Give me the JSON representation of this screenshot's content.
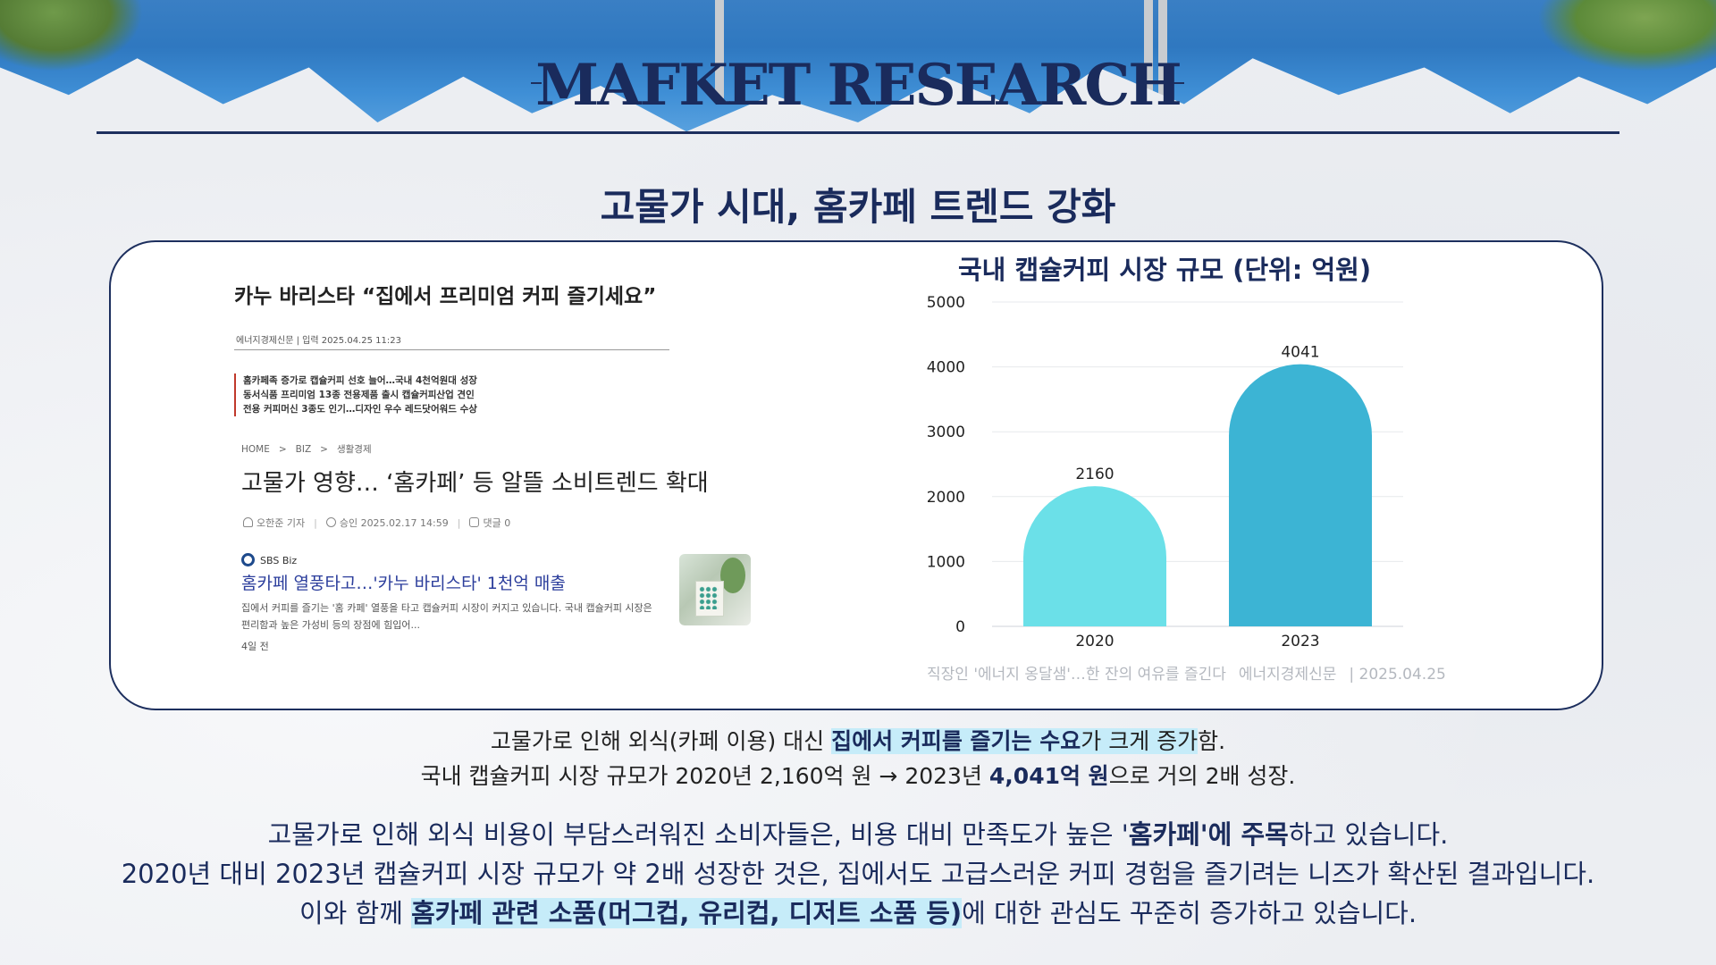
{
  "header": {
    "title": "MAFKET RESEARCH",
    "subtitle": "고물가 시대, 홈카페 트렌드 강화"
  },
  "news1": {
    "headline": "카누 바리스타 “집에서 프리미엄 커피 즐기세요”",
    "meta": "에너지경제신문 | 입력 2025.04.25 11:23",
    "bullets": [
      "홈카페족 증가로 캡슐커피 선호 늘어…국내 4천억원대 성장",
      "동서식품 프리미엄 13종 전용제품 출시 캡슐커피산업 견인",
      "전용 커피머신 3종도 인기…디자인 우수 레드닷어워드 수상"
    ]
  },
  "news2": {
    "breadcrumb": [
      "HOME",
      ">",
      "BIZ",
      ">",
      "생활경제"
    ],
    "headline": "고물가 영향… ‘홈카페’ 등 알뜰 소비트렌드 확대",
    "reporter": "오한준 기자",
    "approved": "승인 2025.02.17 14:59",
    "comments": "댓글 0"
  },
  "news3": {
    "source": "SBS Biz",
    "headline": "홈카페 열풍타고…'카누 바리스타' 1천억 매출",
    "body": "집에서 커피를 즐기는 '홈 카페' 열풍을 타고 캡슐커피 시장이 커지고 있습니다. 국내 캡슐커피 시장은 편리함과 높은 가성비 등의 장점에 힘입어...",
    "time": "4일 전"
  },
  "chart_data": {
    "type": "bar",
    "title": "국내 캡슐커피 시장 규모 (단위: 억원)",
    "categories": [
      "2020",
      "2023"
    ],
    "values": [
      2160,
      4041
    ],
    "ylim": [
      0,
      5000
    ],
    "yticks": [
      0,
      1000,
      2000,
      3000,
      4000,
      5000
    ],
    "grid": true,
    "colors": [
      "#6be0e8",
      "#3cb4d4"
    ]
  },
  "caption": {
    "article": "직장인 '에너지 옹달샘'…한 잔의 여유를 즐긴다",
    "outlet": "에너지경제신문",
    "date": "| 2025.04.25"
  },
  "summary": {
    "line1_pre": "고물가로 인해 외식(카페 이용) 대신 ",
    "line1_bold": "집에서 커피를 즐기는 수요",
    "line1_hl_tail": "가 크게 증가",
    "line1_post": "함.",
    "line2_pre": "국내 캡슐커피 시장 규모가 2020년 2,160억 원 → 2023년 ",
    "line2_bold": "4,041억 원",
    "line2_post": "으로 거의 2배 성장."
  },
  "conclusion": {
    "line1_pre": "고물가로 인해 외식 비용이 부담스러워진 소비자들은, 비용 대비 만족도가 높은 '",
    "line1_bold": "홈카페'에 주목",
    "line1_post": "하고 있습니다.",
    "line2": "2020년 대비 2023년 캡슐커피 시장 규모가 약 2배 성장한 것은, 집에서도 고급스러운 커피 경험을 즐기려는 니즈가 확산된 결과입니다.",
    "line3_pre": "이와 함께 ",
    "line3_bold": "홈카페 관련 소품(머그컵, 유리컵, 디저트 소품 등)",
    "line3_post": "에 대한 관심도 꾸준히 증가하고 있습니다."
  }
}
